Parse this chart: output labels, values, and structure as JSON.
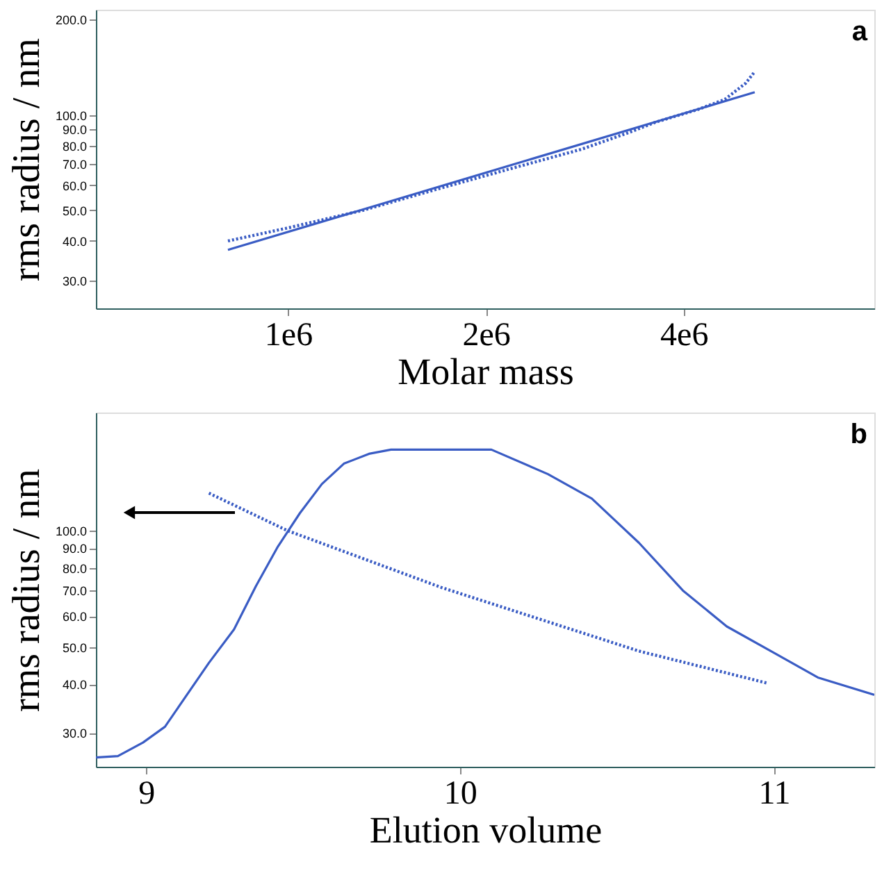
{
  "chart_data": [
    {
      "type": "line",
      "ylabel": "rms radius / nm",
      "xlabel": "Molar mass",
      "log": "xy",
      "xlim": [
        510000,
        7800000
      ],
      "ylim": [
        24.5,
        215
      ],
      "xticks": [
        {
          "value": 1000000,
          "label": "1e6"
        },
        {
          "value": 2000000,
          "label": "2e6"
        },
        {
          "value": 4000000,
          "label": "4e6"
        }
      ],
      "yticks": [
        {
          "value": 30,
          "label": "30.0"
        },
        {
          "value": 40,
          "label": "40.0"
        },
        {
          "value": 50,
          "label": "50.0"
        },
        {
          "value": 60,
          "label": "60.0"
        },
        {
          "value": 70,
          "label": "70.0"
        },
        {
          "value": 80,
          "label": "80.0"
        },
        {
          "value": 90,
          "label": "90.0"
        },
        {
          "value": 100,
          "label": "100.0"
        },
        {
          "value": 200,
          "label": "200.0"
        }
      ],
      "grid": false,
      "annotations": [
        "a"
      ],
      "series": [
        {
          "color": "#3a5cc4",
          "line_style": "dotted",
          "x": [
            810000,
            1000000,
            1300000,
            1700000,
            2200000,
            2800000,
            3300000,
            3630000,
            4200000,
            4620000,
            4970000,
            5130000
          ],
          "values": [
            40,
            44,
            50,
            58.6,
            68,
            78,
            88,
            95,
            104,
            112,
            126,
            137
          ]
        },
        {
          "color": "#3a5cc4",
          "line_style": "solid",
          "x": [
            810000,
            5130000
          ],
          "values": [
            37.5,
            118
          ]
        }
      ]
    },
    {
      "type": "line",
      "ylabel": "rms radius / nm",
      "xlabel": "Elution volume",
      "log": "y",
      "xlim": [
        8.84,
        11.32
      ],
      "ylim": [
        24.5,
        202
      ],
      "xticks": [
        9,
        10,
        11
      ],
      "yticks": [
        {
          "value": 30,
          "label": "30.0"
        },
        {
          "value": 40,
          "label": "40.0"
        },
        {
          "value": 50,
          "label": "50.0"
        },
        {
          "value": 60,
          "label": "60.0"
        },
        {
          "value": 70,
          "label": "70.0"
        },
        {
          "value": 80,
          "label": "80.0"
        },
        {
          "value": 90,
          "label": "90.0"
        },
        {
          "value": 100,
          "label": "100.0"
        }
      ],
      "grid": false,
      "annotations": [
        "b"
      ],
      "series": [
        {
          "color": "#3a5cc4",
          "line_style": "dotted",
          "x": [
            9.2,
            9.45,
            9.94,
            10.57,
            10.98
          ],
          "values": [
            125,
            100,
            71.3,
            48.8,
            40.3
          ]
        },
        {
          "color": "#3a5cc4",
          "line_style": "solid",
          "x": [
            8.84,
            8.91,
            8.99,
            9.06,
            9.2,
            9.28,
            9.35,
            9.42,
            9.49,
            9.56,
            9.63,
            9.71,
            9.78,
            10.1,
            10.28,
            10.42,
            10.57,
            10.71,
            10.85,
            11.0,
            11.14,
            11.32
          ],
          "values": [
            25.9,
            26.1,
            28.3,
            31.1,
            45.5,
            55.5,
            71.9,
            91,
            111,
            132,
            149,
            158,
            162,
            162,
            140,
            121,
            93,
            70,
            56.5,
            48.3,
            41.7,
            37.6
          ]
        }
      ]
    }
  ]
}
